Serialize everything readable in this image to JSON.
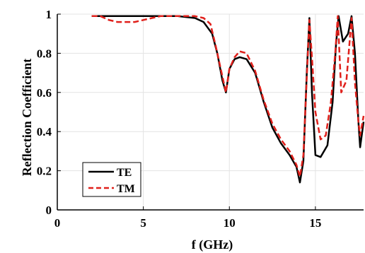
{
  "chart_data": {
    "type": "line",
    "title": "",
    "xlabel": "f (GHz)",
    "ylabel": "Reflection Coefficient",
    "xlim": [
      0,
      17.8
    ],
    "ylim": [
      0,
      1
    ],
    "xticks": [
      0,
      5,
      10,
      15
    ],
    "xtick_labels": [
      "0",
      "5",
      "10",
      "15"
    ],
    "yticks": [
      0,
      0.2,
      0.4,
      0.6,
      0.8,
      1
    ],
    "ytick_labels": [
      "0",
      "0.2",
      "0.4",
      "0.6",
      "0.8",
      "1"
    ],
    "grid": true,
    "legend": "bottom-left",
    "series": [
      {
        "name": "TE",
        "color": "#000000",
        "dash": "solid",
        "x": [
          2,
          3,
          4,
          5,
          6,
          7,
          8,
          8.5,
          9,
          9.3,
          9.6,
          9.8,
          10.0,
          10.3,
          10.6,
          11.0,
          11.5,
          12.0,
          12.5,
          13.0,
          13.5,
          13.9,
          14.1,
          14.3,
          14.5,
          14.65,
          14.8,
          15.0,
          15.3,
          15.7,
          16.0,
          16.2,
          16.35,
          16.6,
          16.9,
          17.1,
          17.3,
          17.5,
          17.6,
          17.8
        ],
        "y": [
          0.99,
          0.99,
          0.99,
          0.99,
          0.99,
          0.99,
          0.98,
          0.96,
          0.9,
          0.8,
          0.66,
          0.6,
          0.72,
          0.77,
          0.78,
          0.77,
          0.7,
          0.55,
          0.42,
          0.34,
          0.28,
          0.22,
          0.14,
          0.25,
          0.7,
          0.98,
          0.6,
          0.28,
          0.27,
          0.33,
          0.55,
          0.85,
          0.99,
          0.86,
          0.9,
          0.99,
          0.8,
          0.45,
          0.32,
          0.45
        ]
      },
      {
        "name": "TM",
        "color": "#e0201b",
        "dash": "dashed",
        "x": [
          2,
          2.5,
          3,
          3.5,
          4,
          4.5,
          5,
          5.5,
          6,
          6.5,
          7,
          7.5,
          8,
          8.5,
          8.9,
          9.2,
          9.5,
          9.8,
          10.0,
          10.3,
          10.6,
          11.0,
          11.5,
          12.0,
          12.5,
          13.0,
          13.5,
          13.9,
          14.1,
          14.3,
          14.5,
          14.65,
          14.8,
          15.0,
          15.3,
          15.6,
          15.9,
          16.15,
          16.3,
          16.5,
          16.8,
          17.1,
          17.3,
          17.5,
          17.6,
          17.8
        ],
        "y": [
          0.99,
          0.99,
          0.97,
          0.96,
          0.96,
          0.96,
          0.97,
          0.98,
          0.99,
          0.99,
          0.99,
          0.99,
          0.99,
          0.98,
          0.95,
          0.84,
          0.72,
          0.6,
          0.72,
          0.78,
          0.81,
          0.8,
          0.71,
          0.56,
          0.44,
          0.36,
          0.3,
          0.23,
          0.17,
          0.28,
          0.68,
          0.97,
          0.78,
          0.5,
          0.36,
          0.38,
          0.55,
          0.8,
          0.99,
          0.6,
          0.66,
          0.98,
          0.65,
          0.45,
          0.38,
          0.48
        ]
      }
    ]
  }
}
